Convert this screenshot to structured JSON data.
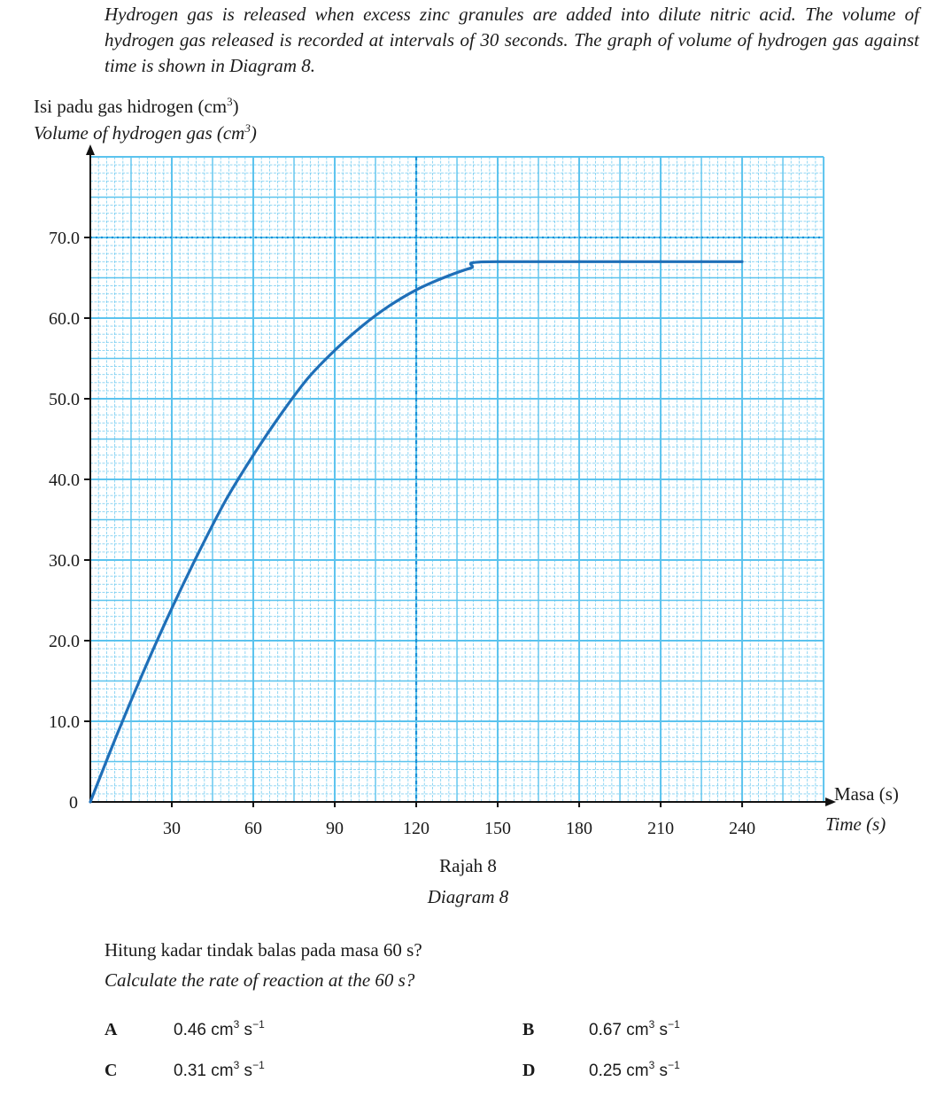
{
  "intro": "Hydrogen gas is released when excess zinc granules are added into dilute nitric acid. The volume of hydrogen gas released is recorded at intervals of 30 seconds. The graph of volume of hydrogen gas against time is shown in Diagram 8.",
  "y_label_ms": "Isi padu gas hidrogen (cm",
  "y_label_en": "Volume of hydrogen gas (cm",
  "unit_sup": "3",
  "close_paren": ")",
  "x_label_ms": "Masa (s)",
  "x_label_en": "Time (s)",
  "caption_ms": "Rajah 8",
  "caption_en": "Diagram 8",
  "question_ms": "Hitung kadar tindak balas pada masa 60 s?",
  "question_en": "Calculate the rate of reaction at the 60 s?",
  "options": [
    {
      "letter": "A",
      "value": "0.46 cm",
      "sup1": "3",
      "mid": " s",
      "sup2": "−1"
    },
    {
      "letter": "B",
      "value": "0.67 cm",
      "sup1": "3",
      "mid": " s",
      "sup2": "−1"
    },
    {
      "letter": "C",
      "value": "0.31 cm",
      "sup1": "3",
      "mid": " s",
      "sup2": "−1"
    },
    {
      "letter": "D",
      "value": "0.25 cm",
      "sup1": "3",
      "mid": " s",
      "sup2": "−1"
    }
  ],
  "chart_data": {
    "type": "line",
    "xlabel": "Masa (s) / Time (s)",
    "ylabel": "Isi padu gas hidrogen (cm³) / Volume of hydrogen gas (cm³)",
    "xlim": [
      0,
      270
    ],
    "ylim": [
      0,
      80
    ],
    "x_ticks": [
      "30",
      "60",
      "90",
      "120",
      "150",
      "180",
      "210",
      "240"
    ],
    "y_ticks": [
      "0",
      "10.0",
      "20.0",
      "30.0",
      "40.0",
      "50.0",
      "60.0",
      "70.0"
    ],
    "grid": true,
    "line_color": "#1f6fb8",
    "grid_color": "#5bc3ee",
    "guide_lines": [
      {
        "axis": "x",
        "value": 120
      },
      {
        "axis": "y",
        "value": 70
      }
    ],
    "series": [
      {
        "x": [
          0,
          10,
          20,
          30,
          40,
          50,
          60,
          70,
          80,
          90,
          100,
          110,
          120,
          130,
          140,
          150,
          240
        ],
        "y": [
          0,
          8.5,
          16.5,
          24,
          31,
          37.5,
          43,
          48,
          52.5,
          56,
          59,
          61.5,
          63.5,
          65,
          66.2,
          67,
          67
        ]
      }
    ]
  }
}
